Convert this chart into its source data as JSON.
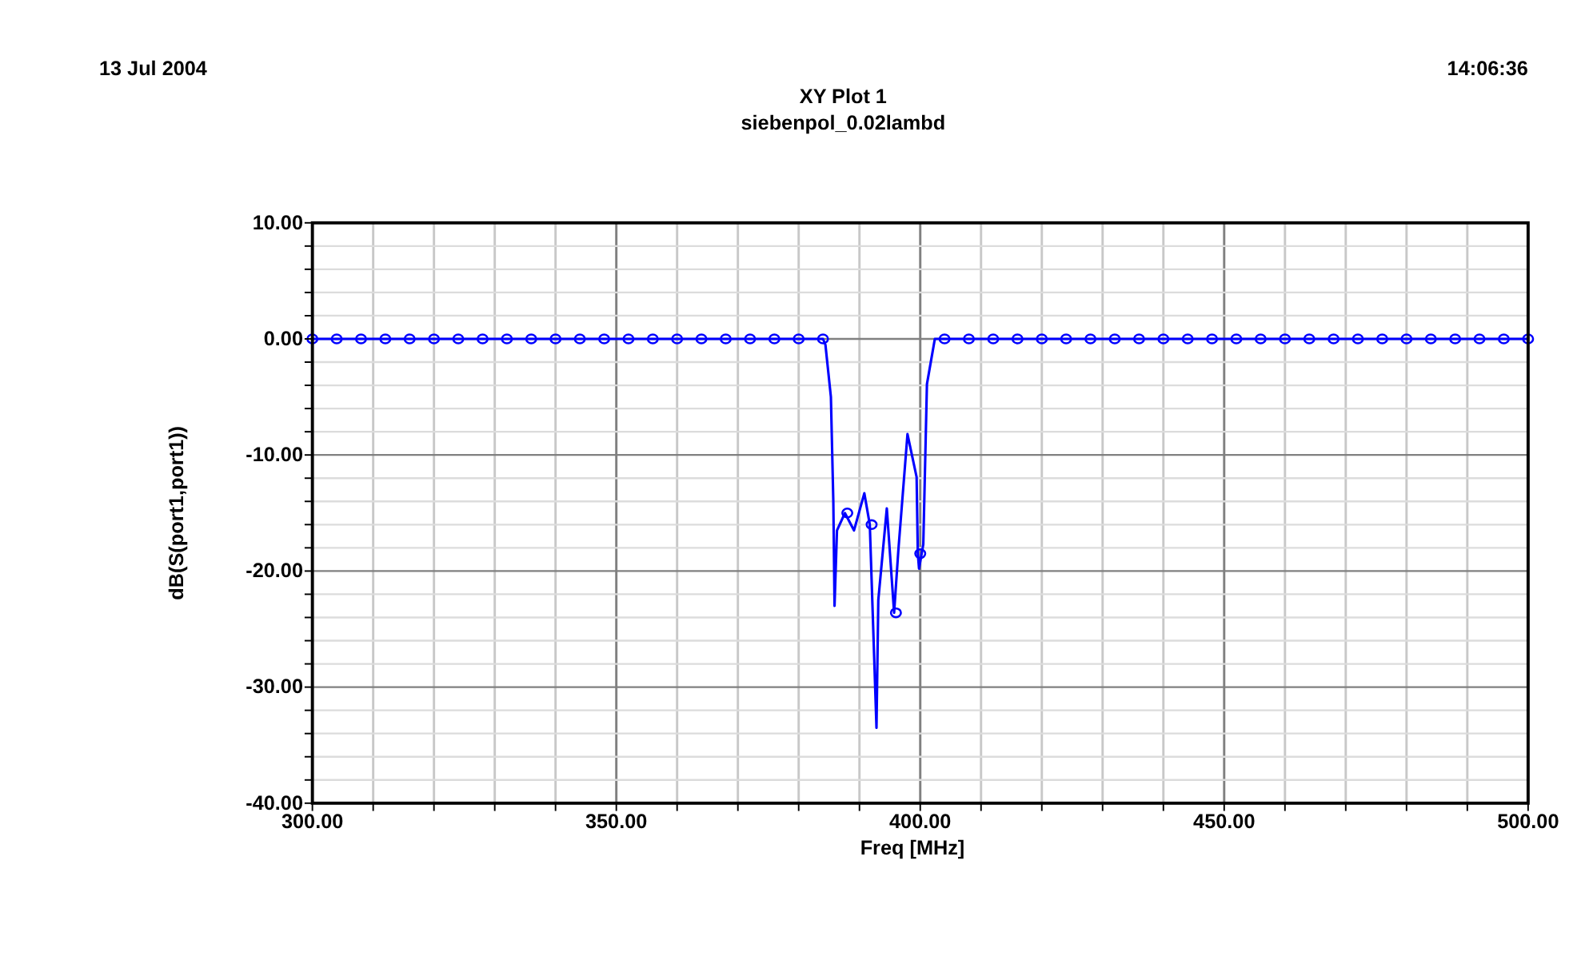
{
  "chart_data": {
    "type": "line",
    "title": "XY Plot 1",
    "subtitle": "siebenpol_0.02lambd",
    "xlabel": "Freq [MHz]",
    "ylabel": "dB(S(port1,port1))",
    "annotations": [
      "13 Jul 2004",
      "14:06:36"
    ],
    "xlim": [
      300,
      500
    ],
    "ylim": [
      -40,
      10
    ],
    "xticks": [
      {
        "value": 300,
        "label": "300.00"
      },
      {
        "value": 310,
        "label": null
      },
      {
        "value": 320,
        "label": null
      },
      {
        "value": 330,
        "label": null
      },
      {
        "value": 340,
        "label": null
      },
      {
        "value": 350,
        "label": "350.00"
      },
      {
        "value": 360,
        "label": null
      },
      {
        "value": 370,
        "label": null
      },
      {
        "value": 380,
        "label": null
      },
      {
        "value": 390,
        "label": null
      },
      {
        "value": 400,
        "label": "400.00"
      },
      {
        "value": 410,
        "label": null
      },
      {
        "value": 420,
        "label": null
      },
      {
        "value": 430,
        "label": null
      },
      {
        "value": 440,
        "label": null
      },
      {
        "value": 450,
        "label": "450.00"
      },
      {
        "value": 460,
        "label": null
      },
      {
        "value": 470,
        "label": null
      },
      {
        "value": 480,
        "label": null
      },
      {
        "value": 490,
        "label": null
      },
      {
        "value": 500,
        "label": "500.00"
      }
    ],
    "yticks": [
      {
        "value": -40,
        "label": "-40.00"
      },
      {
        "value": -38,
        "label": null
      },
      {
        "value": -36,
        "label": null
      },
      {
        "value": -34,
        "label": null
      },
      {
        "value": -32,
        "label": null
      },
      {
        "value": -30,
        "label": "-30.00"
      },
      {
        "value": -28,
        "label": null
      },
      {
        "value": -26,
        "label": null
      },
      {
        "value": -24,
        "label": null
      },
      {
        "value": -22,
        "label": null
      },
      {
        "value": -20,
        "label": "-20.00"
      },
      {
        "value": -18,
        "label": null
      },
      {
        "value": -16,
        "label": null
      },
      {
        "value": -14,
        "label": null
      },
      {
        "value": -12,
        "label": null
      },
      {
        "value": -10,
        "label": "-10.00"
      },
      {
        "value": -8,
        "label": null
      },
      {
        "value": -6,
        "label": null
      },
      {
        "value": -4,
        "label": null
      },
      {
        "value": -2,
        "label": null
      },
      {
        "value": 0,
        "label": "0.00"
      },
      {
        "value": 2,
        "label": null
      },
      {
        "value": 4,
        "label": null
      },
      {
        "value": 6,
        "label": null
      },
      {
        "value": 8,
        "label": null
      },
      {
        "value": 10,
        "label": "10.00"
      }
    ],
    "grid": true,
    "series": [
      {
        "color": "#0000ff",
        "marker": "none",
        "x": [
          300,
          384,
          384.4,
          385.3,
          385.7,
          385.9,
          386.3,
          387.6,
          389.1,
          390.8,
          391.7,
          392.8,
          393.1,
          394.5,
          395.7,
          396.4,
          397.9,
          399.4,
          399.6,
          399.8,
          400.5,
          401.1,
          402.4,
          404,
          500
        ],
        "values": [
          0,
          0,
          -0.5,
          -5,
          -14,
          -23,
          -16.5,
          -15,
          -16.5,
          -13.3,
          -16,
          -33.5,
          -22.5,
          -14.6,
          -23.6,
          -18.2,
          -8.2,
          -11.9,
          -18.5,
          -19.8,
          -17.7,
          -3.9,
          0,
          0,
          0
        ]
      },
      {
        "type": "scatter",
        "color": "#0000ff",
        "marker": "circle",
        "x": [
          300,
          304,
          308,
          312,
          316,
          320,
          324,
          328,
          332,
          336,
          340,
          344,
          348,
          352,
          356,
          360,
          364,
          368,
          372,
          376,
          380,
          384,
          388,
          392,
          396,
          400,
          404,
          408,
          412,
          416,
          420,
          424,
          428,
          432,
          436,
          440,
          444,
          448,
          452,
          456,
          460,
          464,
          468,
          472,
          476,
          480,
          484,
          488,
          492,
          496,
          500
        ],
        "values": [
          0,
          0,
          0,
          0,
          0,
          0,
          0,
          0,
          0,
          0,
          0,
          0,
          0,
          0,
          0,
          0,
          0,
          0,
          0,
          0,
          0,
          0,
          -15,
          -16,
          -23.6,
          -18.5,
          0,
          0,
          0,
          0,
          0,
          0,
          0,
          0,
          0,
          0,
          0,
          0,
          0,
          0,
          0,
          0,
          0,
          0,
          0,
          0,
          0,
          0,
          0,
          0,
          0
        ]
      }
    ]
  }
}
